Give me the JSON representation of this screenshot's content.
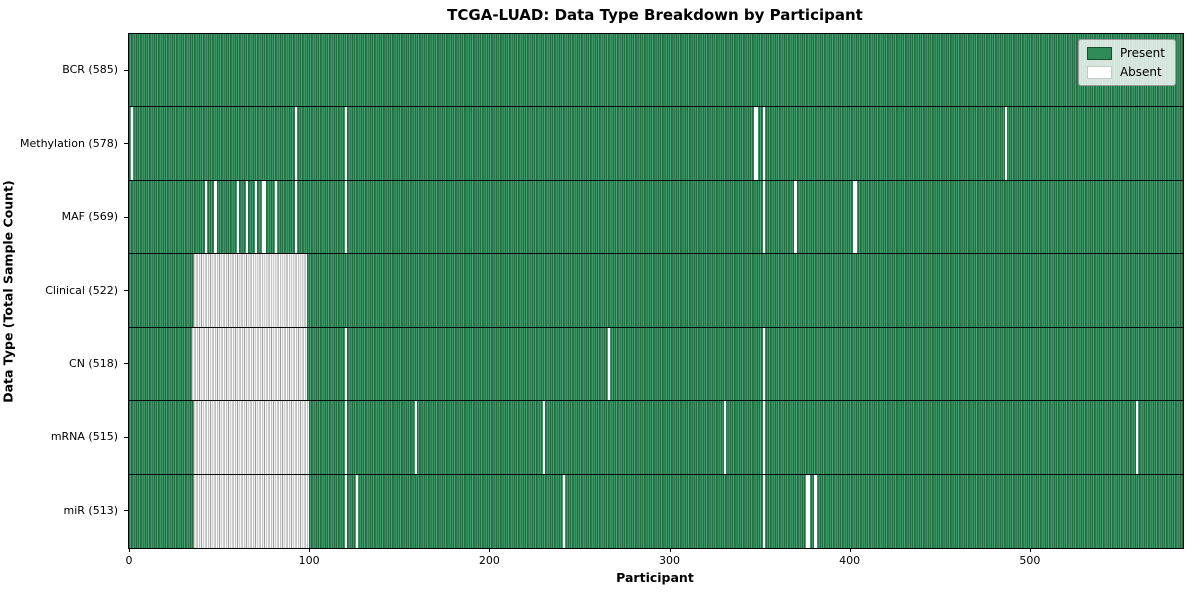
{
  "chart_data": {
    "type": "heatmap",
    "title": "TCGA-LUAD: Data Type Breakdown by Participant",
    "xlabel": "Participant",
    "ylabel": "Data Type (Total Sample Count)",
    "n_participants": 585,
    "x_ticks": [
      0,
      100,
      200,
      300,
      400,
      500
    ],
    "grid": false,
    "legend": {
      "position": "upper right",
      "entries": [
        {
          "label": "Present",
          "color": "#2e8b57",
          "edge": "#17502f"
        },
        {
          "label": "Absent",
          "color": "#ffffff",
          "edge": "#c8c8c8"
        }
      ]
    },
    "colors": {
      "present": "#2e8b57",
      "present_edge": "#17502f",
      "present_light": "#4aa276",
      "absent": "#ffffff",
      "absent_edge": "#9e9e9e",
      "row_divider": "#0a0a0a",
      "spine": "#000000"
    },
    "rows": [
      {
        "label": "BCR (585)",
        "name": "bcr",
        "count": 585,
        "absent_ranges": []
      },
      {
        "label": "Methylation (578)",
        "name": "methylation",
        "count": 578,
        "absent_ranges": [
          [
            1,
            1
          ],
          [
            92,
            92
          ],
          [
            120,
            120
          ],
          [
            347,
            348
          ],
          [
            352,
            352
          ],
          [
            486,
            486
          ]
        ]
      },
      {
        "label": "MAF (569)",
        "name": "maf",
        "count": 569,
        "absent_ranges": [
          [
            42,
            42
          ],
          [
            47,
            48
          ],
          [
            60,
            60
          ],
          [
            65,
            65
          ],
          [
            70,
            70
          ],
          [
            74,
            75
          ],
          [
            81,
            81
          ],
          [
            92,
            92
          ],
          [
            120,
            120
          ],
          [
            352,
            352
          ],
          [
            369,
            370
          ],
          [
            402,
            403
          ]
        ]
      },
      {
        "label": "Clinical (522)",
        "name": "clinical",
        "count": 522,
        "absent_ranges": [
          [
            36,
            98
          ]
        ]
      },
      {
        "label": "CN (518)",
        "name": "cn",
        "count": 518,
        "absent_ranges": [
          [
            35,
            98
          ],
          [
            120,
            120
          ],
          [
            266,
            266
          ],
          [
            352,
            352
          ]
        ]
      },
      {
        "label": "mRNA (515)",
        "name": "mrna",
        "count": 515,
        "absent_ranges": [
          [
            36,
            99
          ],
          [
            120,
            120
          ],
          [
            159,
            159
          ],
          [
            230,
            230
          ],
          [
            330,
            330
          ],
          [
            352,
            352
          ],
          [
            559,
            559
          ]
        ]
      },
      {
        "label": "miR (513)",
        "name": "mir",
        "count": 513,
        "absent_ranges": [
          [
            36,
            99
          ],
          [
            120,
            120
          ],
          [
            126,
            126
          ],
          [
            241,
            241
          ],
          [
            352,
            352
          ],
          [
            376,
            377
          ],
          [
            380,
            381
          ]
        ]
      }
    ]
  }
}
